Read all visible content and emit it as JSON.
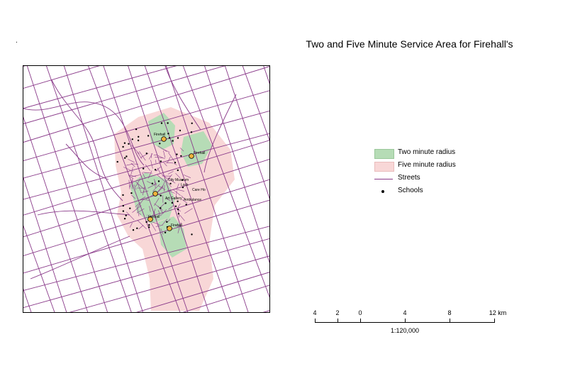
{
  "header": {
    "corner_mark": "."
  },
  "map": {
    "title": "Two and Five Minute Service Area for Firehall's",
    "colors": {
      "two_minute": "#b6dcb6",
      "five_minute": "#f8d7d7",
      "streets": "#8a3a8a",
      "schools": "#000000",
      "firehall": "#f0b33c"
    },
    "place_labels": [
      "Firehall",
      "Firehall",
      "Firehall",
      "Firehall",
      "City Museum",
      "Lock",
      "Care Ho",
      "Art Gallery",
      "Ambulance"
    ]
  },
  "legend": {
    "items": [
      {
        "label": "Two minute radius",
        "icon": "green-swatch"
      },
      {
        "label": "Five minute radius",
        "icon": "pink-swatch"
      },
      {
        "label": "Streets",
        "icon": "line-swatch"
      },
      {
        "label": "Schools",
        "icon": "dot-swatch"
      }
    ]
  },
  "scalebar": {
    "ticks": [
      "4",
      "2",
      "0",
      "4",
      "8",
      "12 km"
    ],
    "ratio": "1:120,000"
  }
}
